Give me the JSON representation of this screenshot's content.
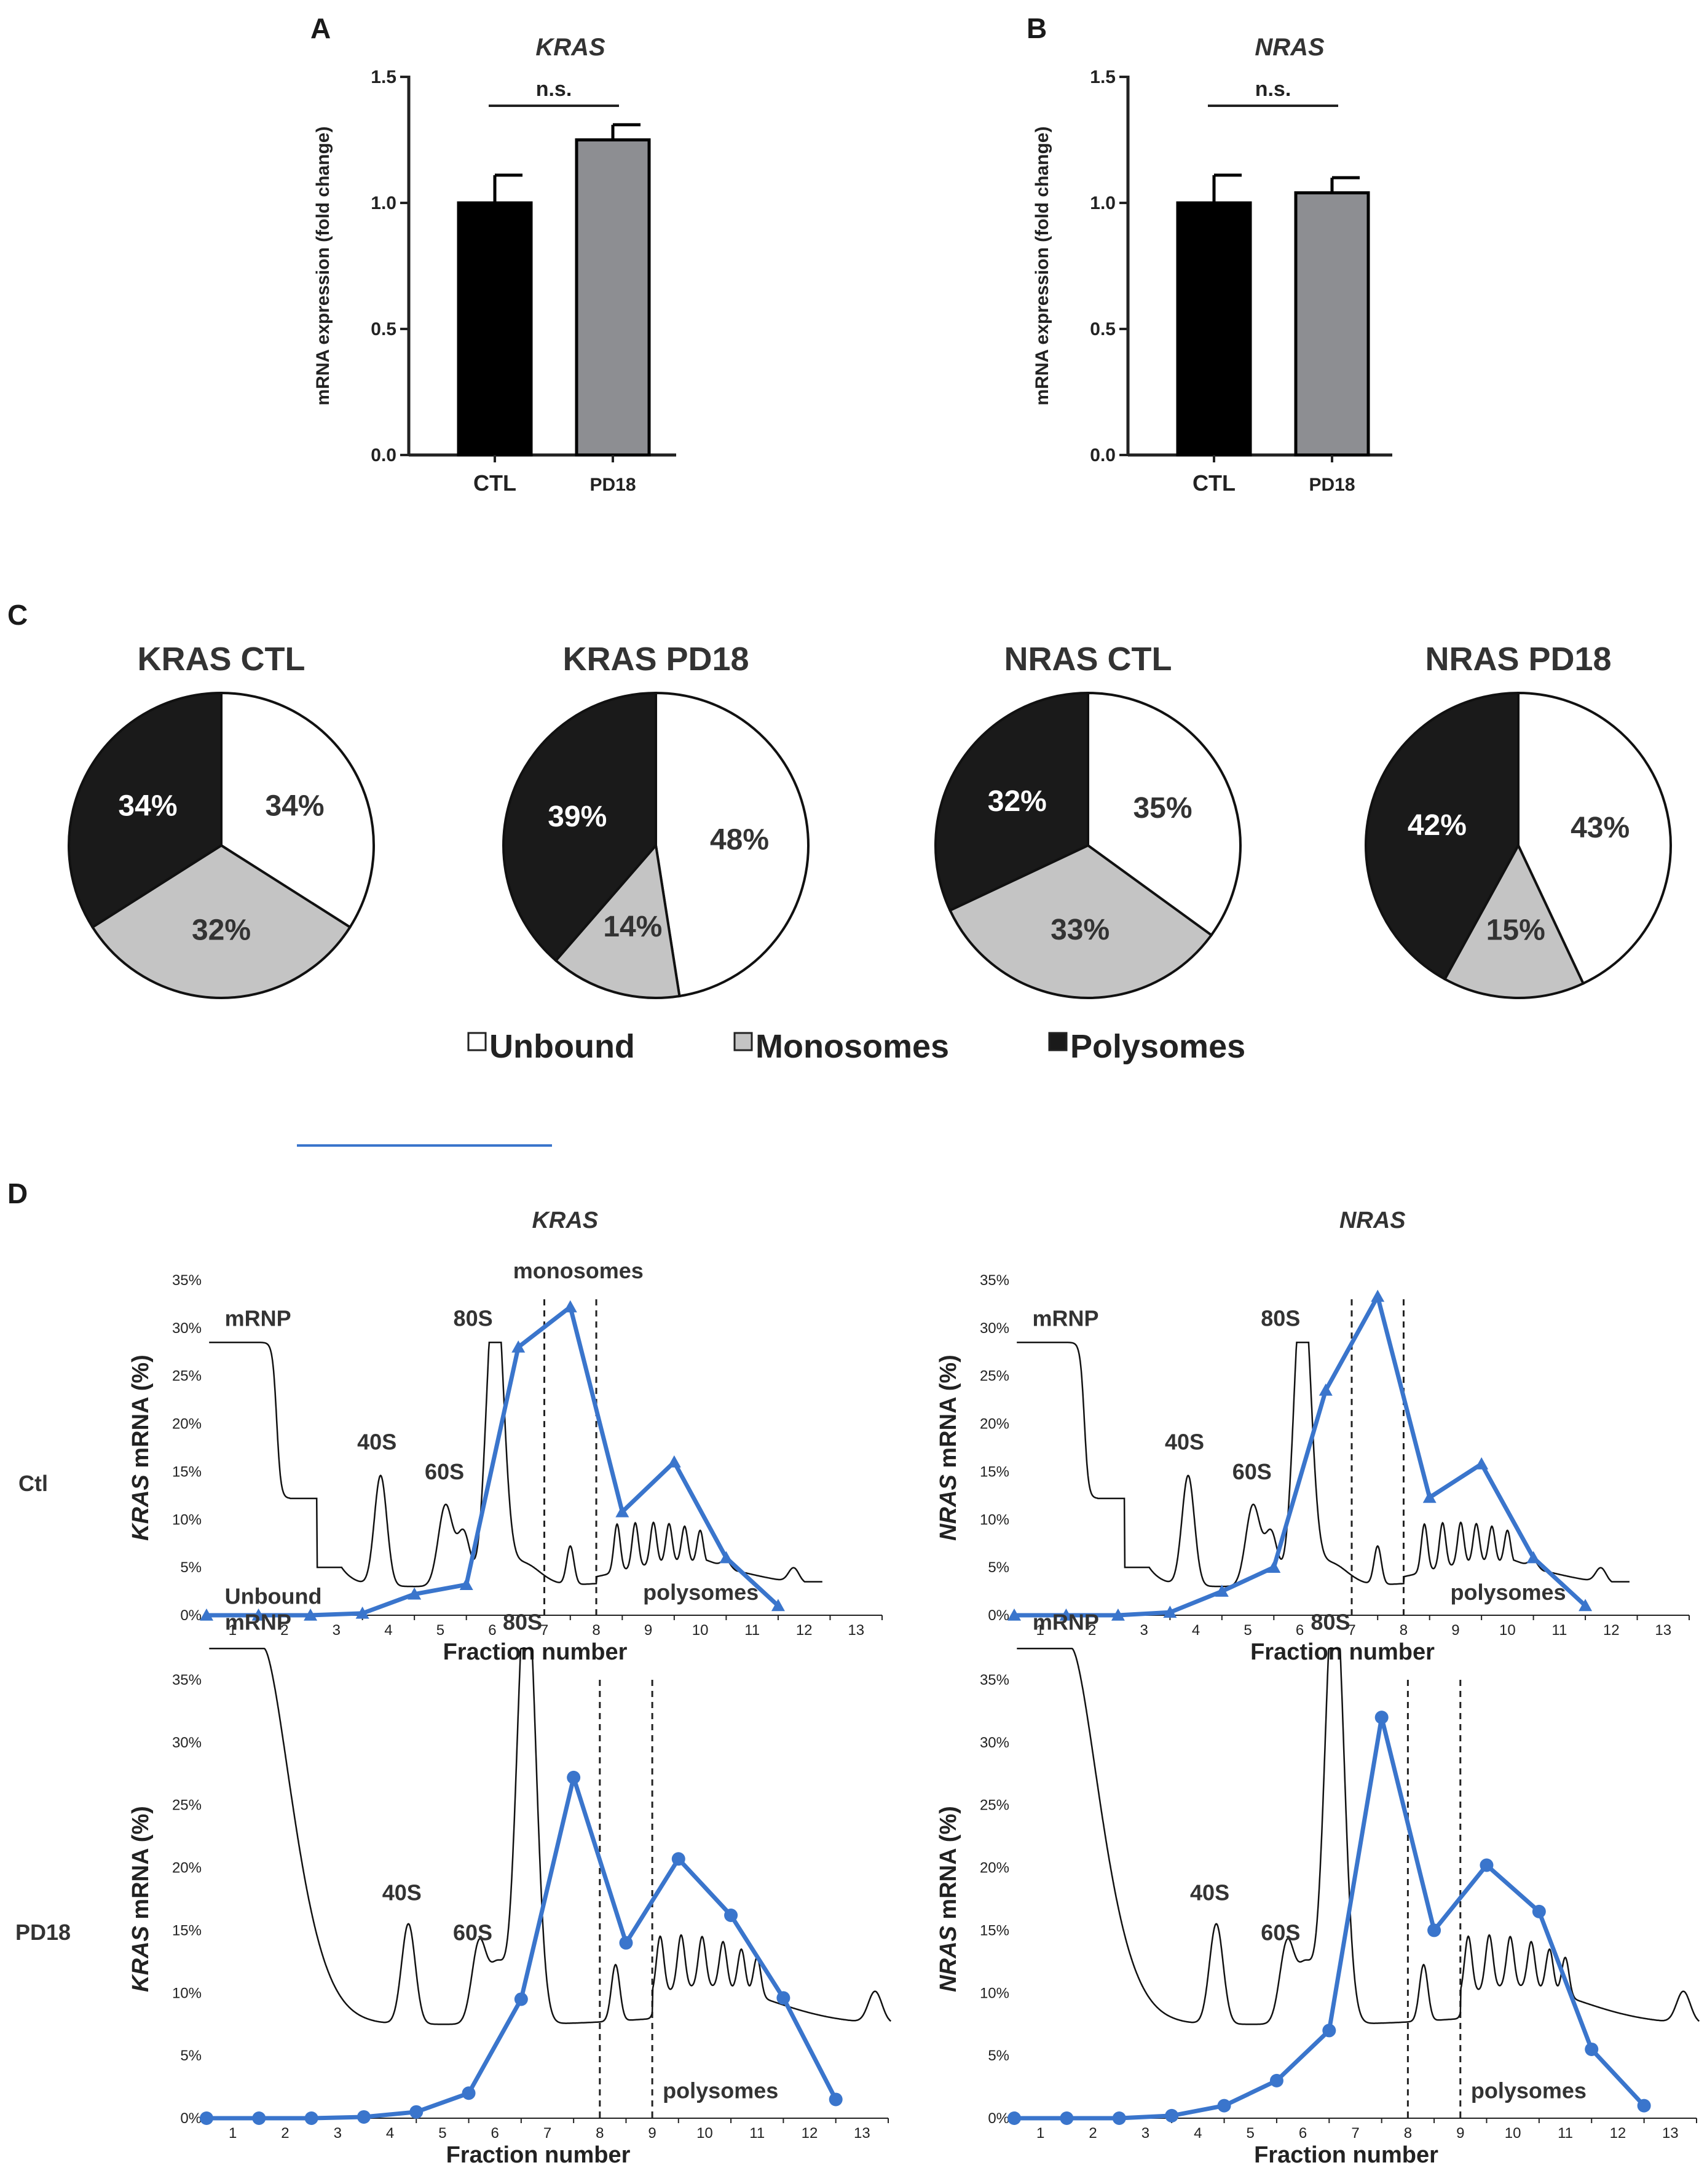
{
  "colors": {
    "ctl_bar": "#000000",
    "pd18_bar": "#8d8e92",
    "unbound": "#ffffff",
    "monosomes": "#c4c4c4",
    "polysomes": "#1a1a1a",
    "blue_line": "#3a75cc",
    "profile": "#111111"
  },
  "panels": {
    "A": "A",
    "B": "B",
    "C": "C",
    "D": "D"
  },
  "chart_data": [
    {
      "id": "A",
      "type": "bar",
      "title": "KRAS",
      "ylabel": "mRNA expression (fold change)",
      "categories": [
        "CTL",
        "PD18"
      ],
      "values": [
        1.0,
        1.25
      ],
      "errors": [
        0.11,
        0.06
      ],
      "ylim": [
        0,
        1.5
      ],
      "yticks": [
        "0.0",
        "0.5",
        "1.0",
        "1.5"
      ],
      "significance": "n.s."
    },
    {
      "id": "B",
      "type": "bar",
      "title": "NRAS",
      "ylabel": "mRNA expression (fold change)",
      "categories": [
        "CTL",
        "PD18"
      ],
      "values": [
        1.0,
        1.04
      ],
      "errors": [
        0.11,
        0.06
      ],
      "ylim": [
        0,
        1.5
      ],
      "yticks": [
        "0.0",
        "0.5",
        "1.0",
        "1.5"
      ],
      "significance": "n.s."
    },
    {
      "id": "C1",
      "type": "pie",
      "title": "KRAS CTL",
      "slices": [
        {
          "name": "Unbound",
          "value": 34,
          "label": "34%"
        },
        {
          "name": "Monosomes",
          "value": 32,
          "label": "32%"
        },
        {
          "name": "Polysomes",
          "value": 34,
          "label": "34%"
        }
      ]
    },
    {
      "id": "C2",
      "type": "pie",
      "title": "KRAS PD18",
      "slices": [
        {
          "name": "Unbound",
          "value": 48,
          "label": "48%"
        },
        {
          "name": "Monosomes",
          "value": 14,
          "label": "14%"
        },
        {
          "name": "Polysomes",
          "value": 39,
          "label": "39%"
        }
      ]
    },
    {
      "id": "C3",
      "type": "pie",
      "title": "NRAS CTL",
      "slices": [
        {
          "name": "Unbound",
          "value": 35,
          "label": "35%"
        },
        {
          "name": "Monosomes",
          "value": 33,
          "label": "33%"
        },
        {
          "name": "Polysomes",
          "value": 32,
          "label": "32%"
        }
      ]
    },
    {
      "id": "C4",
      "type": "pie",
      "title": "NRAS PD18",
      "slices": [
        {
          "name": "Unbound",
          "value": 43,
          "label": "43%"
        },
        {
          "name": "Monosomes",
          "value": 15,
          "label": "15%"
        },
        {
          "name": "Polysomes",
          "value": 42,
          "label": "42%"
        }
      ]
    },
    {
      "id": "D1",
      "type": "line",
      "row": "Ctl",
      "column_title": "KRAS",
      "ylabel_gene": "KRAS",
      "ylabel_rest": " mRNA (%)",
      "xlabel": "Fraction number",
      "xticks": [
        "1",
        "2",
        "3",
        "4",
        "5",
        "6",
        "7",
        "8",
        "9",
        "10",
        "11",
        "12",
        "13"
      ],
      "yticks": [
        "0%",
        "5%",
        "10%",
        "15%",
        "20%",
        "25%",
        "30%",
        "35%"
      ],
      "ylim": [
        0,
        35
      ],
      "marker": "triangle",
      "x": [
        0.5,
        1.5,
        2.5,
        3.5,
        4.5,
        5.5,
        6.5,
        7.5,
        8.5,
        9.5,
        10.5,
        11.5
      ],
      "y": [
        0,
        0,
        0,
        0.2,
        2.2,
        3.2,
        28,
        32.2,
        10.8,
        16.0,
        6.0,
        1.0
      ],
      "dashed_x": [
        7,
        8
      ],
      "profile": "ctl",
      "peak_labels": {
        "mrnp": "mRNP",
        "s40": "40S",
        "s60": "60S",
        "s80": "80S",
        "monosomes": "monosomes",
        "polysomes": "polysomes",
        "unbound": "Unbound"
      }
    },
    {
      "id": "D2",
      "type": "line",
      "row": "Ctl",
      "column_title": "NRAS",
      "ylabel_gene": "NRAS",
      "ylabel_rest": " mRNA (%)",
      "xlabel": "Fraction number",
      "xticks": [
        "1",
        "2",
        "3",
        "4",
        "5",
        "6",
        "7",
        "8",
        "9",
        "10",
        "11",
        "12",
        "13"
      ],
      "yticks": [
        "0%",
        "5%",
        "10%",
        "15%",
        "20%",
        "25%",
        "30%",
        "35%"
      ],
      "ylim": [
        0,
        35
      ],
      "marker": "triangle",
      "x": [
        0.5,
        1.5,
        2.5,
        3.5,
        4.5,
        5.5,
        6.5,
        7.5,
        8.5,
        9.5,
        10.5,
        11.5
      ],
      "y": [
        0,
        0,
        0,
        0.3,
        2.5,
        5.0,
        23.5,
        33.3,
        12.3,
        15.8,
        6.0,
        1.0
      ],
      "dashed_x": [
        7,
        8
      ],
      "profile": "ctl",
      "peak_labels": {
        "mrnp": "mRNP",
        "s40": "40S",
        "s60": "60S",
        "s80": "80S",
        "polysomes": "polysomes"
      }
    },
    {
      "id": "D3",
      "type": "line",
      "row": "PD18",
      "column_title": "",
      "ylabel_gene": "KRAS",
      "ylabel_rest": " mRNA (%)",
      "xlabel": "Fraction number",
      "xticks": [
        "1",
        "2",
        "3",
        "4",
        "5",
        "6",
        "7",
        "8",
        "9",
        "10",
        "11",
        "12",
        "13"
      ],
      "yticks": [
        "0%",
        "5%",
        "10%",
        "15%",
        "20%",
        "25%",
        "30%",
        "35%"
      ],
      "ylim": [
        0,
        35
      ],
      "marker": "circle",
      "x": [
        0.5,
        1.5,
        2.5,
        3.5,
        4.5,
        5.5,
        6.5,
        7.5,
        8.5,
        9.5,
        10.5,
        11.5,
        12.5
      ],
      "y": [
        0,
        0,
        0,
        0.1,
        0.5,
        2.0,
        9.5,
        27.2,
        14.0,
        20.7,
        16.2,
        9.6,
        1.5
      ],
      "dashed_x": [
        8,
        9
      ],
      "profile": "pd18",
      "peak_labels": {
        "mrnp": "mRNP",
        "s40": "40S",
        "s60": "60S",
        "s80": "80S",
        "polysomes": "polysomes"
      }
    },
    {
      "id": "D4",
      "type": "line",
      "row": "PD18",
      "column_title": "",
      "ylabel_gene": "NRAS",
      "ylabel_rest": " mRNA (%)",
      "xlabel": "Fraction number",
      "xticks": [
        "1",
        "2",
        "3",
        "4",
        "5",
        "6",
        "7",
        "8",
        "9",
        "10",
        "11",
        "12",
        "13"
      ],
      "yticks": [
        "0%",
        "5%",
        "10%",
        "15%",
        "20%",
        "25%",
        "30%",
        "35%"
      ],
      "ylim": [
        0,
        35
      ],
      "marker": "circle",
      "x": [
        0.5,
        1.5,
        2.5,
        3.5,
        4.5,
        5.5,
        6.5,
        7.5,
        8.5,
        9.5,
        10.5,
        11.5,
        12.5
      ],
      "y": [
        0,
        0,
        0,
        0.2,
        1.0,
        3.0,
        7.0,
        32.0,
        15.0,
        20.2,
        16.5,
        5.5,
        1.0
      ],
      "dashed_x": [
        8,
        9
      ],
      "profile": "pd18",
      "peak_labels": {
        "mrnp": "mRNP",
        "s40": "40S",
        "s60": "60S",
        "s80": "80S",
        "polysomes": "polysomes"
      }
    }
  ],
  "legend": [
    "Unbound",
    "Monosomes",
    "Polysomes"
  ],
  "row_labels": {
    "ctl": "Ctl",
    "pd18": "PD18"
  }
}
